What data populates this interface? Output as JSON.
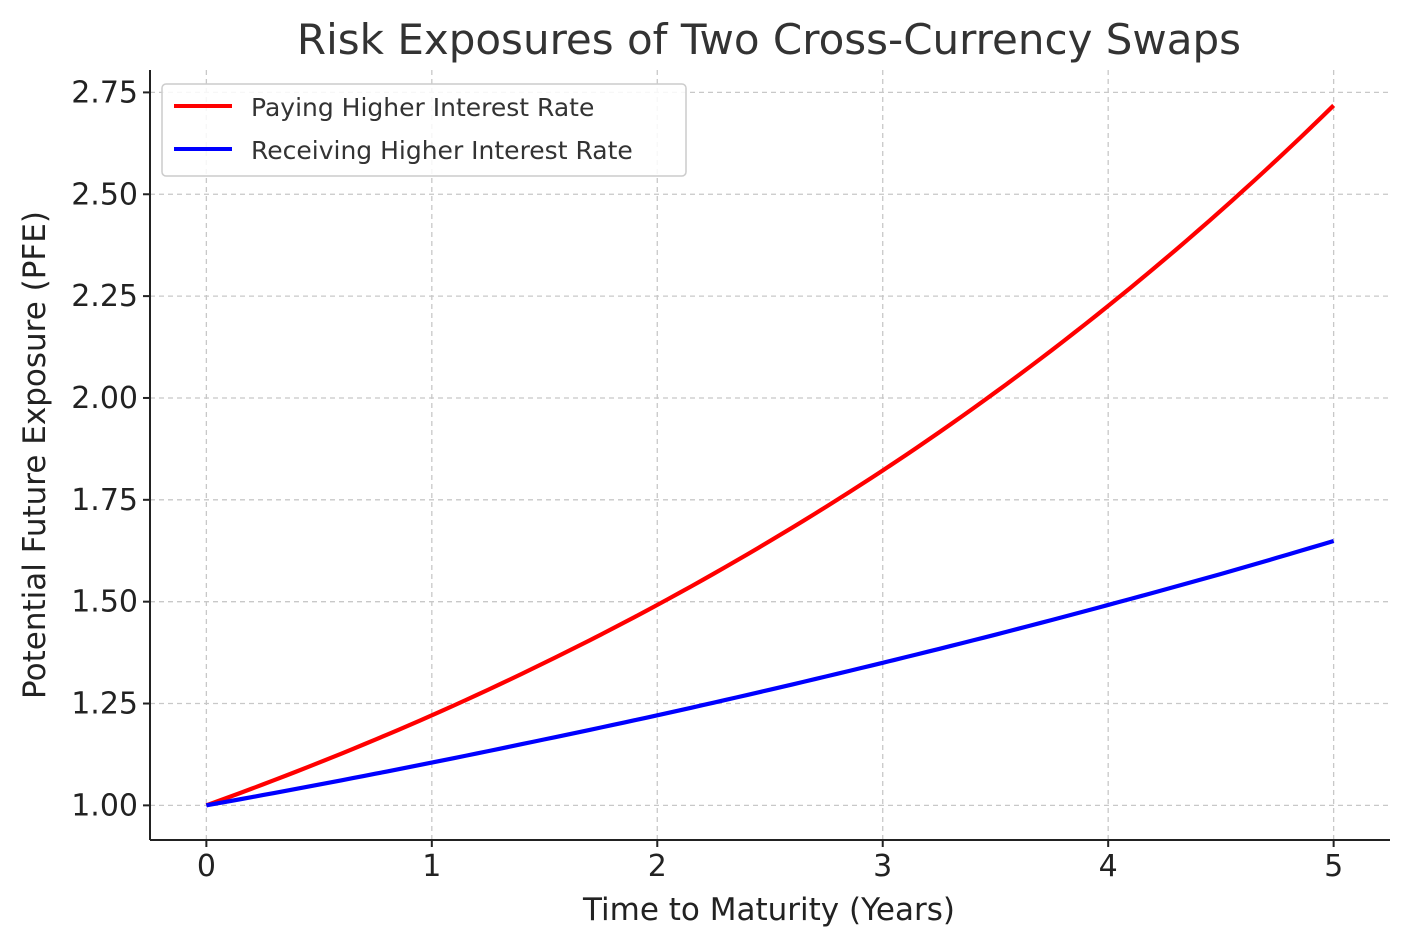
{
  "chart_data": {
    "type": "line",
    "title": "Risk Exposures of Two Cross-Currency Swaps",
    "xlabel": "Time to Maturity (Years)",
    "ylabel": "Potential Future Exposure (PFE)",
    "xlim": [
      -0.25,
      5.25
    ],
    "ylim": [
      0.915,
      2.805
    ],
    "xticks": [
      0,
      1,
      2,
      3,
      4,
      5
    ],
    "yticks": [
      1.0,
      1.25,
      1.5,
      1.75,
      2.0,
      2.25,
      2.5,
      2.75
    ],
    "xtick_labels": [
      "0",
      "1",
      "2",
      "3",
      "4",
      "5"
    ],
    "ytick_labels": [
      "1.00",
      "1.25",
      "1.50",
      "1.75",
      "2.00",
      "2.25",
      "2.50",
      "2.75"
    ],
    "grid": true,
    "legend_position": "top-left",
    "x": [
      0,
      0.5,
      1,
      1.5,
      2,
      2.5,
      3,
      3.5,
      4,
      4.5,
      5
    ],
    "series": [
      {
        "name": "Paying Higher Interest Rate",
        "color": "#ff0000",
        "values": [
          1.0,
          1.105,
          1.221,
          1.35,
          1.492,
          1.649,
          1.822,
          2.014,
          2.226,
          2.46,
          2.718
        ]
      },
      {
        "name": "Receiving Higher Interest Rate",
        "color": "#0000ff",
        "values": [
          1.0,
          1.051,
          1.105,
          1.162,
          1.221,
          1.284,
          1.35,
          1.419,
          1.492,
          1.568,
          1.649
        ]
      }
    ]
  }
}
